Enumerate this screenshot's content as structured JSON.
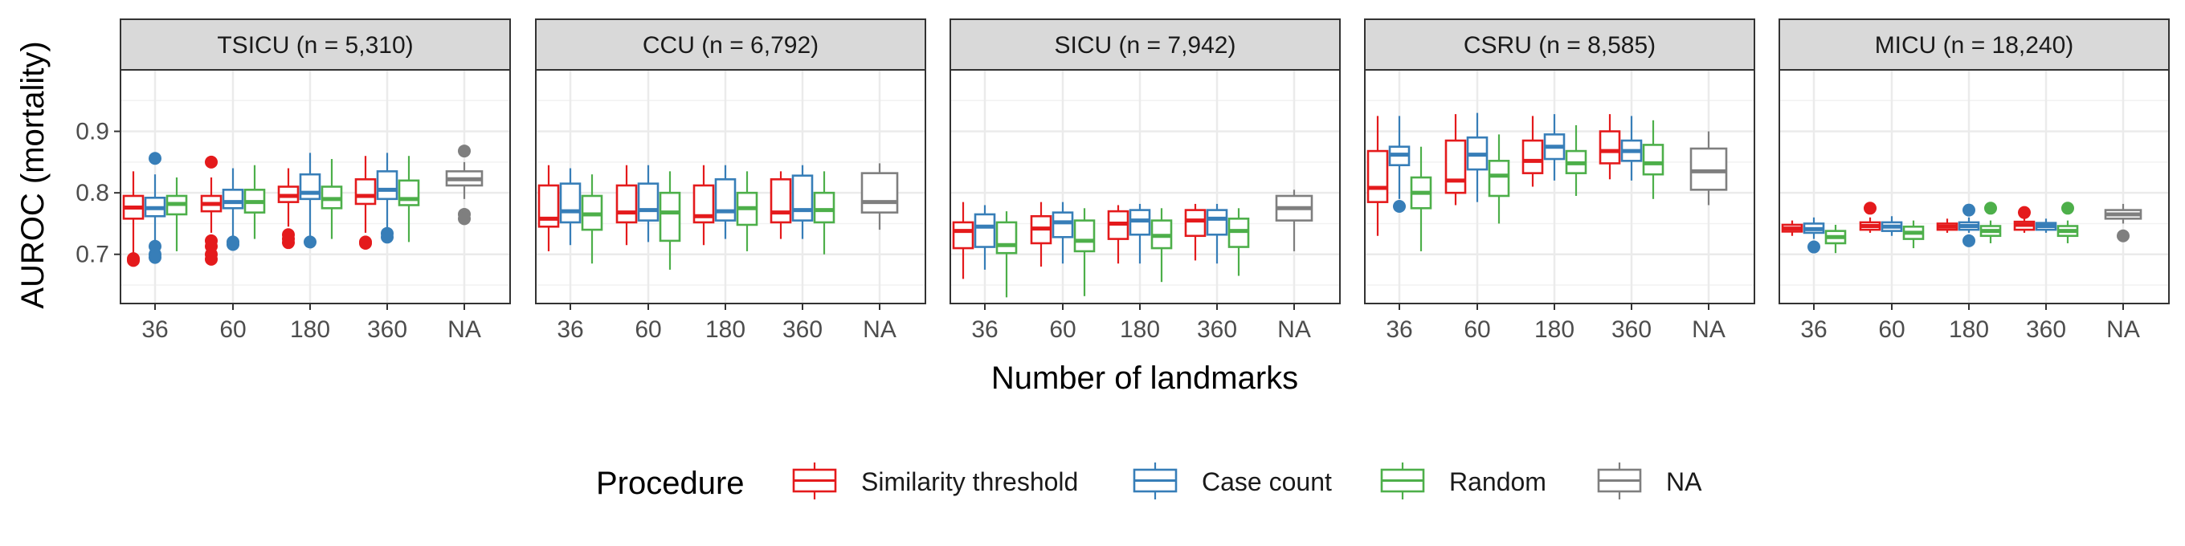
{
  "chart_data": {
    "type": "boxplot",
    "xlabel": "Number of landmarks",
    "ylabel": "AUROC (mortality)",
    "ylim": [
      0.62,
      1.0
    ],
    "yticks": [
      0.7,
      0.8,
      0.9
    ],
    "ytick_labels": [
      "0.7",
      "0.8",
      "0.9"
    ],
    "categories": [
      "36",
      "60",
      "180",
      "360",
      "NA"
    ],
    "legend": {
      "title": "Procedure",
      "placement": "bottom",
      "items": [
        {
          "name": "Similarity threshold",
          "color": "#E41A1C"
        },
        {
          "name": "Case count",
          "color": "#377EB8"
        },
        {
          "name": "Random",
          "color": "#4DAF4A"
        },
        {
          "name": "NA",
          "color": "#7F7F7F"
        }
      ]
    },
    "grid": true,
    "panels": [
      {
        "title": "TSICU (n =  5,310)",
        "groups": {
          "36": [
            {
              "series": "Similarity threshold",
              "min": 0.7,
              "q1": 0.758,
              "median": 0.776,
              "q3": 0.795,
              "max": 0.835,
              "outliers": [
                0.69,
                0.693
              ]
            },
            {
              "series": "Case count",
              "min": 0.71,
              "q1": 0.762,
              "median": 0.775,
              "q3": 0.792,
              "max": 0.83,
              "outliers": [
                0.856,
                0.713,
                0.7,
                0.695
              ]
            },
            {
              "series": "Random",
              "min": 0.705,
              "q1": 0.765,
              "median": 0.782,
              "q3": 0.795,
              "max": 0.825,
              "outliers": []
            }
          ],
          "60": [
            {
              "series": "Similarity threshold",
              "min": 0.735,
              "q1": 0.77,
              "median": 0.782,
              "q3": 0.795,
              "max": 0.825,
              "outliers": [
                0.85,
                0.722,
                0.713,
                0.7,
                0.692
              ]
            },
            {
              "series": "Case count",
              "min": 0.73,
              "q1": 0.775,
              "median": 0.785,
              "q3": 0.805,
              "max": 0.84,
              "outliers": [
                0.72,
                0.716
              ]
            },
            {
              "series": "Random",
              "min": 0.725,
              "q1": 0.768,
              "median": 0.785,
              "q3": 0.805,
              "max": 0.845,
              "outliers": []
            }
          ],
          "180": [
            {
              "series": "Similarity threshold",
              "min": 0.745,
              "q1": 0.785,
              "median": 0.795,
              "q3": 0.81,
              "max": 0.84,
              "outliers": [
                0.732,
                0.725,
                0.719
              ]
            },
            {
              "series": "Case count",
              "min": 0.73,
              "q1": 0.79,
              "median": 0.8,
              "q3": 0.83,
              "max": 0.865,
              "outliers": [
                0.72
              ]
            },
            {
              "series": "Random",
              "min": 0.725,
              "q1": 0.775,
              "median": 0.79,
              "q3": 0.81,
              "max": 0.855,
              "outliers": []
            }
          ],
          "360": [
            {
              "series": "Similarity threshold",
              "min": 0.735,
              "q1": 0.782,
              "median": 0.795,
              "q3": 0.822,
              "max": 0.86,
              "outliers": [
                0.72,
                0.718
              ]
            },
            {
              "series": "Case count",
              "min": 0.735,
              "q1": 0.79,
              "median": 0.805,
              "q3": 0.835,
              "max": 0.865,
              "outliers": [
                0.734,
                0.728
              ]
            },
            {
              "series": "Random",
              "min": 0.72,
              "q1": 0.78,
              "median": 0.79,
              "q3": 0.82,
              "max": 0.86,
              "outliers": []
            }
          ],
          "NA": [
            {
              "series": "NA",
              "min": 0.79,
              "q1": 0.812,
              "median": 0.822,
              "q3": 0.835,
              "max": 0.85,
              "outliers": [
                0.868,
                0.765,
                0.758
              ]
            }
          ]
        }
      },
      {
        "title": "CCU (n =  6,792)",
        "groups": {
          "36": [
            {
              "series": "Similarity threshold",
              "min": 0.705,
              "q1": 0.745,
              "median": 0.758,
              "q3": 0.812,
              "max": 0.845,
              "outliers": []
            },
            {
              "series": "Case count",
              "min": 0.715,
              "q1": 0.752,
              "median": 0.77,
              "q3": 0.815,
              "max": 0.84,
              "outliers": []
            },
            {
              "series": "Random",
              "min": 0.685,
              "q1": 0.74,
              "median": 0.765,
              "q3": 0.795,
              "max": 0.83,
              "outliers": []
            }
          ],
          "60": [
            {
              "series": "Similarity threshold",
              "min": 0.715,
              "q1": 0.752,
              "median": 0.768,
              "q3": 0.812,
              "max": 0.845,
              "outliers": []
            },
            {
              "series": "Case count",
              "min": 0.72,
              "q1": 0.755,
              "median": 0.772,
              "q3": 0.815,
              "max": 0.845,
              "outliers": []
            },
            {
              "series": "Random",
              "min": 0.675,
              "q1": 0.722,
              "median": 0.768,
              "q3": 0.8,
              "max": 0.835,
              "outliers": []
            }
          ],
          "180": [
            {
              "series": "Similarity threshold",
              "min": 0.715,
              "q1": 0.752,
              "median": 0.762,
              "q3": 0.812,
              "max": 0.845,
              "outliers": []
            },
            {
              "series": "Case count",
              "min": 0.725,
              "q1": 0.755,
              "median": 0.77,
              "q3": 0.822,
              "max": 0.845,
              "outliers": []
            },
            {
              "series": "Random",
              "min": 0.705,
              "q1": 0.748,
              "median": 0.775,
              "q3": 0.8,
              "max": 0.835,
              "outliers": []
            }
          ],
          "360": [
            {
              "series": "Similarity threshold",
              "min": 0.725,
              "q1": 0.752,
              "median": 0.768,
              "q3": 0.822,
              "max": 0.835,
              "outliers": []
            },
            {
              "series": "Case count",
              "min": 0.725,
              "q1": 0.755,
              "median": 0.772,
              "q3": 0.828,
              "max": 0.845,
              "outliers": []
            },
            {
              "series": "Random",
              "min": 0.7,
              "q1": 0.752,
              "median": 0.772,
              "q3": 0.8,
              "max": 0.835,
              "outliers": []
            }
          ],
          "NA": [
            {
              "series": "NA",
              "min": 0.74,
              "q1": 0.768,
              "median": 0.785,
              "q3": 0.832,
              "max": 0.848,
              "outliers": []
            }
          ]
        }
      },
      {
        "title": "SICU (n =  7,942)",
        "groups": {
          "36": [
            {
              "series": "Similarity threshold",
              "min": 0.66,
              "q1": 0.71,
              "median": 0.738,
              "q3": 0.752,
              "max": 0.785,
              "outliers": []
            },
            {
              "series": "Case count",
              "min": 0.675,
              "q1": 0.712,
              "median": 0.745,
              "q3": 0.765,
              "max": 0.78,
              "outliers": []
            },
            {
              "series": "Random",
              "min": 0.63,
              "q1": 0.702,
              "median": 0.715,
              "q3": 0.752,
              "max": 0.77,
              "outliers": []
            }
          ],
          "60": [
            {
              "series": "Similarity threshold",
              "min": 0.68,
              "q1": 0.718,
              "median": 0.742,
              "q3": 0.762,
              "max": 0.785,
              "outliers": []
            },
            {
              "series": "Case count",
              "min": 0.685,
              "q1": 0.728,
              "median": 0.752,
              "q3": 0.768,
              "max": 0.785,
              "outliers": []
            },
            {
              "series": "Random",
              "min": 0.632,
              "q1": 0.705,
              "median": 0.722,
              "q3": 0.755,
              "max": 0.775,
              "outliers": []
            }
          ],
          "180": [
            {
              "series": "Similarity threshold",
              "min": 0.685,
              "q1": 0.725,
              "median": 0.75,
              "q3": 0.77,
              "max": 0.78,
              "outliers": []
            },
            {
              "series": "Case count",
              "min": 0.685,
              "q1": 0.732,
              "median": 0.755,
              "q3": 0.772,
              "max": 0.782,
              "outliers": []
            },
            {
              "series": "Random",
              "min": 0.655,
              "q1": 0.71,
              "median": 0.73,
              "q3": 0.755,
              "max": 0.775,
              "outliers": []
            }
          ],
          "360": [
            {
              "series": "Similarity threshold",
              "min": 0.69,
              "q1": 0.73,
              "median": 0.755,
              "q3": 0.772,
              "max": 0.782,
              "outliers": []
            },
            {
              "series": "Case count",
              "min": 0.685,
              "q1": 0.732,
              "median": 0.758,
              "q3": 0.772,
              "max": 0.782,
              "outliers": []
            },
            {
              "series": "Random",
              "min": 0.665,
              "q1": 0.712,
              "median": 0.738,
              "q3": 0.758,
              "max": 0.775,
              "outliers": []
            }
          ],
          "NA": [
            {
              "series": "NA",
              "min": 0.705,
              "q1": 0.755,
              "median": 0.775,
              "q3": 0.795,
              "max": 0.805,
              "outliers": []
            }
          ]
        }
      },
      {
        "title": "CSRU (n =  8,585)",
        "groups": {
          "36": [
            {
              "series": "Similarity threshold",
              "min": 0.73,
              "q1": 0.785,
              "median": 0.808,
              "q3": 0.868,
              "max": 0.925,
              "outliers": []
            },
            {
              "series": "Case count",
              "min": 0.79,
              "q1": 0.845,
              "median": 0.862,
              "q3": 0.875,
              "max": 0.925,
              "outliers": [
                0.778
              ]
            },
            {
              "series": "Random",
              "min": 0.705,
              "q1": 0.775,
              "median": 0.8,
              "q3": 0.825,
              "max": 0.875,
              "outliers": []
            }
          ],
          "60": [
            {
              "series": "Similarity threshold",
              "min": 0.78,
              "q1": 0.8,
              "median": 0.82,
              "q3": 0.885,
              "max": 0.928,
              "outliers": []
            },
            {
              "series": "Case count",
              "min": 0.785,
              "q1": 0.838,
              "median": 0.862,
              "q3": 0.89,
              "max": 0.93,
              "outliers": []
            },
            {
              "series": "Random",
              "min": 0.75,
              "q1": 0.795,
              "median": 0.828,
              "q3": 0.852,
              "max": 0.895,
              "outliers": []
            }
          ],
          "180": [
            {
              "series": "Similarity threshold",
              "min": 0.81,
              "q1": 0.832,
              "median": 0.852,
              "q3": 0.885,
              "max": 0.925,
              "outliers": []
            },
            {
              "series": "Case count",
              "min": 0.82,
              "q1": 0.855,
              "median": 0.875,
              "q3": 0.895,
              "max": 0.928,
              "outliers": []
            },
            {
              "series": "Random",
              "min": 0.795,
              "q1": 0.832,
              "median": 0.848,
              "q3": 0.868,
              "max": 0.91,
              "outliers": []
            }
          ],
          "360": [
            {
              "series": "Similarity threshold",
              "min": 0.822,
              "q1": 0.848,
              "median": 0.868,
              "q3": 0.9,
              "max": 0.928,
              "outliers": []
            },
            {
              "series": "Case count",
              "min": 0.82,
              "q1": 0.852,
              "median": 0.868,
              "q3": 0.885,
              "max": 0.925,
              "outliers": []
            },
            {
              "series": "Random",
              "min": 0.79,
              "q1": 0.83,
              "median": 0.848,
              "q3": 0.878,
              "max": 0.918,
              "outliers": []
            }
          ],
          "NA": [
            {
              "series": "NA",
              "min": 0.78,
              "q1": 0.805,
              "median": 0.835,
              "q3": 0.872,
              "max": 0.9,
              "outliers": []
            }
          ]
        }
      },
      {
        "title": "MICU (n = 18,240)",
        "groups": {
          "36": [
            {
              "series": "Similarity threshold",
              "min": 0.73,
              "q1": 0.737,
              "median": 0.742,
              "q3": 0.748,
              "max": 0.755,
              "outliers": []
            },
            {
              "series": "Case count",
              "min": 0.725,
              "q1": 0.735,
              "median": 0.741,
              "q3": 0.75,
              "max": 0.76,
              "outliers": [
                0.712
              ]
            },
            {
              "series": "Random",
              "min": 0.702,
              "q1": 0.718,
              "median": 0.728,
              "q3": 0.738,
              "max": 0.748,
              "outliers": []
            }
          ],
          "60": [
            {
              "series": "Similarity threshold",
              "min": 0.735,
              "q1": 0.74,
              "median": 0.746,
              "q3": 0.752,
              "max": 0.76,
              "outliers": [
                0.775
              ]
            },
            {
              "series": "Case count",
              "min": 0.73,
              "q1": 0.738,
              "median": 0.745,
              "q3": 0.752,
              "max": 0.762,
              "outliers": []
            },
            {
              "series": "Random",
              "min": 0.71,
              "q1": 0.725,
              "median": 0.735,
              "q3": 0.745,
              "max": 0.755,
              "outliers": []
            }
          ],
          "180": [
            {
              "series": "Similarity threshold",
              "min": 0.735,
              "q1": 0.74,
              "median": 0.745,
              "q3": 0.75,
              "max": 0.758,
              "outliers": []
            },
            {
              "series": "Case count",
              "min": 0.735,
              "q1": 0.74,
              "median": 0.746,
              "q3": 0.752,
              "max": 0.76,
              "outliers": [
                0.772,
                0.722
              ]
            },
            {
              "series": "Random",
              "min": 0.718,
              "q1": 0.73,
              "median": 0.738,
              "q3": 0.746,
              "max": 0.755,
              "outliers": [
                0.775
              ]
            }
          ],
          "360": [
            {
              "series": "Similarity threshold",
              "min": 0.735,
              "q1": 0.74,
              "median": 0.748,
              "q3": 0.753,
              "max": 0.76,
              "outliers": [
                0.768
              ]
            },
            {
              "series": "Case count",
              "min": 0.735,
              "q1": 0.74,
              "median": 0.746,
              "q3": 0.751,
              "max": 0.758,
              "outliers": []
            },
            {
              "series": "Random",
              "min": 0.718,
              "q1": 0.73,
              "median": 0.738,
              "q3": 0.746,
              "max": 0.755,
              "outliers": [
                0.775
              ]
            }
          ],
          "NA": [
            {
              "series": "NA",
              "min": 0.75,
              "q1": 0.758,
              "median": 0.765,
              "q3": 0.772,
              "max": 0.782,
              "outliers": [
                0.73
              ]
            }
          ]
        }
      }
    ]
  }
}
